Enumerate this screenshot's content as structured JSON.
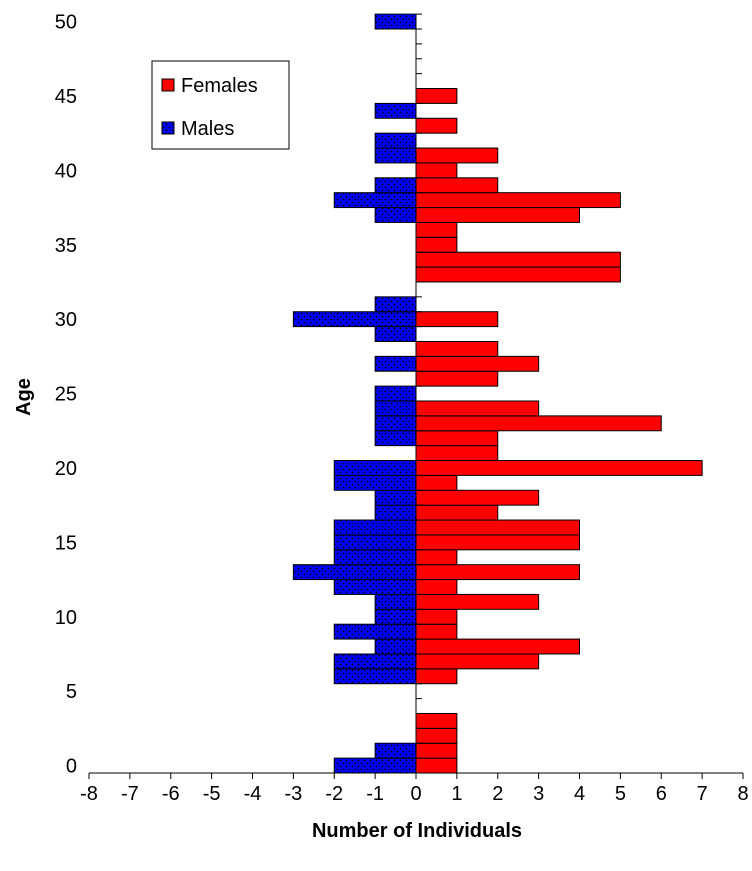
{
  "chart_data": {
    "type": "bar",
    "orientation": "horizontal",
    "xlabel": "Number of Individuals",
    "ylabel": "Age",
    "xlim": [
      -8,
      8
    ],
    "ylim": [
      0,
      50
    ],
    "x_ticks": [
      "-8",
      "-7",
      "-6",
      "-5",
      "-4",
      "-3",
      "-2",
      "-1",
      "0",
      "1",
      "2",
      "3",
      "4",
      "5",
      "6",
      "7",
      "8"
    ],
    "y_ticks": [
      "0",
      "5",
      "10",
      "15",
      "20",
      "25",
      "30",
      "35",
      "40",
      "45",
      "50"
    ],
    "legend_position": "top-left",
    "grid": false,
    "series": [
      {
        "name": "Females",
        "color": "#ff0000",
        "values": [
          {
            "age": 0,
            "value": 1
          },
          {
            "age": 1,
            "value": 1
          },
          {
            "age": 2,
            "value": 1
          },
          {
            "age": 3,
            "value": 1
          },
          {
            "age": 6,
            "value": 1
          },
          {
            "age": 7,
            "value": 3
          },
          {
            "age": 8,
            "value": 4
          },
          {
            "age": 9,
            "value": 1
          },
          {
            "age": 10,
            "value": 1
          },
          {
            "age": 11,
            "value": 3
          },
          {
            "age": 12,
            "value": 1
          },
          {
            "age": 13,
            "value": 4
          },
          {
            "age": 14,
            "value": 1
          },
          {
            "age": 15,
            "value": 4
          },
          {
            "age": 16,
            "value": 4
          },
          {
            "age": 17,
            "value": 2
          },
          {
            "age": 18,
            "value": 3
          },
          {
            "age": 19,
            "value": 1
          },
          {
            "age": 20,
            "value": 7
          },
          {
            "age": 21,
            "value": 2
          },
          {
            "age": 22,
            "value": 2
          },
          {
            "age": 23,
            "value": 6
          },
          {
            "age": 24,
            "value": 3
          },
          {
            "age": 26,
            "value": 2
          },
          {
            "age": 27,
            "value": 3
          },
          {
            "age": 28,
            "value": 2
          },
          {
            "age": 30,
            "value": 2
          },
          {
            "age": 33,
            "value": 5
          },
          {
            "age": 34,
            "value": 5
          },
          {
            "age": 35,
            "value": 1
          },
          {
            "age": 36,
            "value": 1
          },
          {
            "age": 37,
            "value": 4
          },
          {
            "age": 38,
            "value": 5
          },
          {
            "age": 39,
            "value": 2
          },
          {
            "age": 40,
            "value": 1
          },
          {
            "age": 41,
            "value": 2
          },
          {
            "age": 43,
            "value": 1
          },
          {
            "age": 45,
            "value": 1
          }
        ]
      },
      {
        "name": "Males",
        "color": "#0000ff",
        "values": [
          {
            "age": 0,
            "value": -2
          },
          {
            "age": 1,
            "value": -1
          },
          {
            "age": 6,
            "value": -2
          },
          {
            "age": 7,
            "value": -2
          },
          {
            "age": 8,
            "value": -1
          },
          {
            "age": 9,
            "value": -2
          },
          {
            "age": 10,
            "value": -1
          },
          {
            "age": 11,
            "value": -1
          },
          {
            "age": 12,
            "value": -2
          },
          {
            "age": 13,
            "value": -3
          },
          {
            "age": 14,
            "value": -2
          },
          {
            "age": 15,
            "value": -2
          },
          {
            "age": 16,
            "value": -2
          },
          {
            "age": 17,
            "value": -1
          },
          {
            "age": 18,
            "value": -1
          },
          {
            "age": 19,
            "value": -2
          },
          {
            "age": 20,
            "value": -2
          },
          {
            "age": 22,
            "value": -1
          },
          {
            "age": 23,
            "value": -1
          },
          {
            "age": 24,
            "value": -1
          },
          {
            "age": 25,
            "value": -1
          },
          {
            "age": 27,
            "value": -1
          },
          {
            "age": 29,
            "value": -1
          },
          {
            "age": 30,
            "value": -3
          },
          {
            "age": 31,
            "value": -1
          },
          {
            "age": 37,
            "value": -1
          },
          {
            "age": 38,
            "value": -2
          },
          {
            "age": 39,
            "value": -1
          },
          {
            "age": 41,
            "value": -1
          },
          {
            "age": 42,
            "value": -1
          },
          {
            "age": 44,
            "value": -1
          },
          {
            "age": 50,
            "value": -1
          }
        ]
      }
    ]
  }
}
